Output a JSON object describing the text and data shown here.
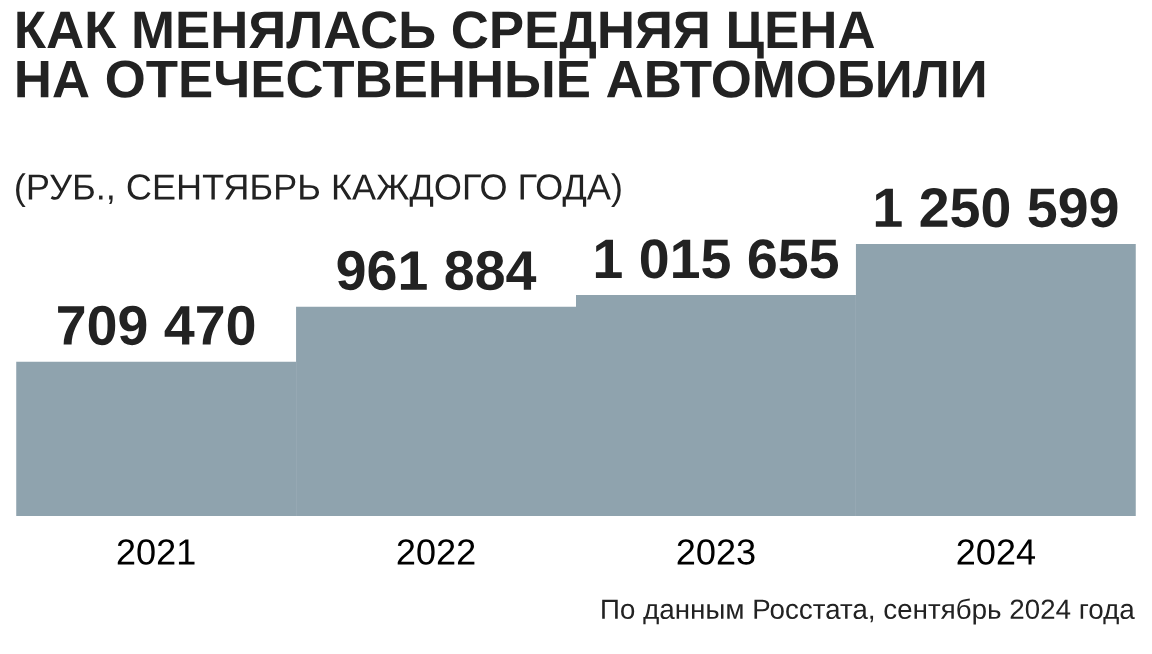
{
  "chart_data": {
    "type": "bar",
    "title": "КАК МЕНЯЛАСЬ СРЕДНЯЯ ЦЕНА\nНА ОТЕЧЕСТВЕННЫЕ АВТОМОБИЛИ",
    "subtitle": "(РУБ., СЕНТЯБРЬ КАЖДОГО ГОДА)",
    "categories": [
      "2021",
      "2022",
      "2023",
      "2024"
    ],
    "values": [
      709470,
      961884,
      1015655,
      1250599
    ],
    "value_labels": [
      "709 470",
      "961 884",
      "1 015 655",
      "1 250 599"
    ],
    "color": "#8fa3ae",
    "grid": false,
    "legend": false,
    "annotations": [
      "По данным Росстата, сентябрь 2024 года"
    ]
  }
}
